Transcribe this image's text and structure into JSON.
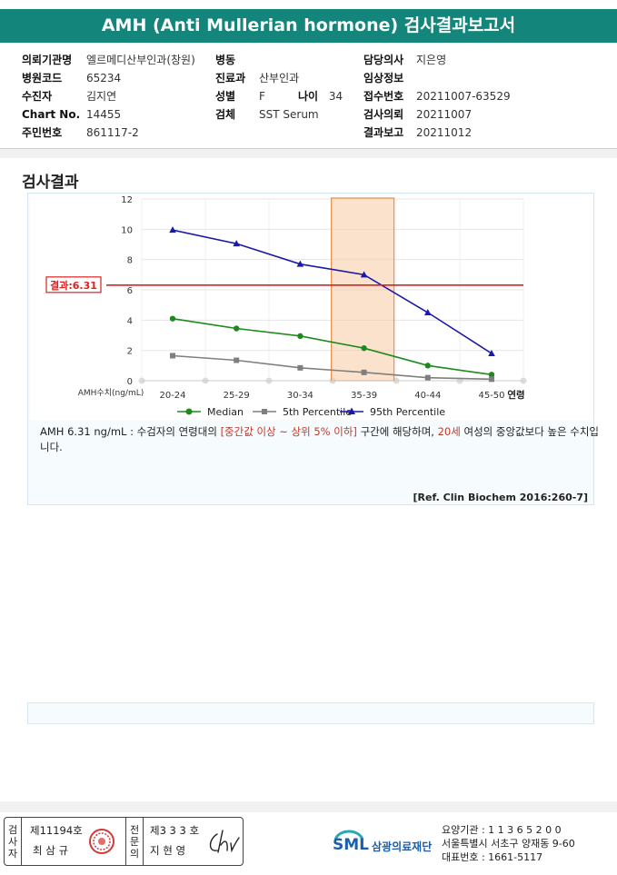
{
  "title": "AMH (Anti Mullerian hormone) 검사결과보고서",
  "info": {
    "left": [
      {
        "label": "의뢰기관명",
        "value": "엘르메디산부인과(창원)"
      },
      {
        "label": "병원코드",
        "value": "65234"
      },
      {
        "label": "수진자",
        "value": "김지연"
      },
      {
        "label": "Chart No.",
        "value": "14455"
      },
      {
        "label": "주민번호",
        "value": "861117-2"
      }
    ],
    "middle": [
      {
        "label": "병동",
        "value": ""
      },
      {
        "label": "진료과",
        "value": "산부인과"
      },
      {
        "label": "성별",
        "value": "F"
      },
      {
        "label": "검체",
        "value": "SST Serum"
      }
    ],
    "age_label": "나이",
    "age_value": "34",
    "right": [
      {
        "label": "담당의사",
        "value": "지은영"
      },
      {
        "label": "임상정보",
        "value": ""
      },
      {
        "label": "접수번호",
        "value": "20211007-63529"
      },
      {
        "label": "검사의뢰",
        "value": "20211007"
      },
      {
        "label": "결과보고",
        "value": "20211012"
      }
    ]
  },
  "section_title": "검사결과",
  "chart_data": {
    "type": "line",
    "categories": [
      "20-24",
      "25-29",
      "30-34",
      "35-39",
      "40-44",
      "45-50"
    ],
    "xlabel": "연령",
    "ylabel": "AMH수치(ng/mL)",
    "ylim": [
      0,
      12
    ],
    "yticks": [
      "0",
      "2",
      "4",
      "6",
      "8",
      "10",
      "12"
    ],
    "grid": true,
    "legend_position": "bottom",
    "series": [
      {
        "name": "Median",
        "color": "#1e8a1e",
        "marker": "circle",
        "values": [
          4.1,
          3.45,
          2.95,
          2.15,
          1.0,
          0.4
        ]
      },
      {
        "name": "5th Percentile",
        "color": "#7f7f7f",
        "marker": "square",
        "values": [
          1.65,
          1.35,
          0.85,
          0.55,
          0.2,
          0.1
        ]
      },
      {
        "name": "95th Percentile",
        "color": "#1a1aa6",
        "marker": "triangle",
        "values": [
          9.95,
          9.05,
          7.7,
          7.0,
          4.5,
          1.8
        ]
      }
    ],
    "result_line": {
      "value": 6.31,
      "label": "결과:6.31",
      "color": "#dd1f1f"
    },
    "highlight_category": "35-39"
  },
  "note": {
    "prefix": "AMH  6.31 ng/mL : 수검자의 연령대의 ",
    "range": "[중간값 이상 ~ 상위 5% 이하]",
    "middle": " 구간에 해당하며, ",
    "age": "20세",
    "suffix": " 여성의 중앙값보다 높은 수치입니다."
  },
  "reference": "[Ref. Clin Biochem 2016:260-7]",
  "signature": {
    "col1_label": [
      "검",
      "사",
      "자"
    ],
    "col1_no": "제11194호",
    "col1_name": "최 삼 규",
    "col2_label": [
      "전",
      "문",
      "의"
    ],
    "col2_no": "제3 3 3 호",
    "col2_name": "지 현 영"
  },
  "org": {
    "logo": "SML",
    "name": "삼광의료재단",
    "code": "요양기관 : 1 1 3 6 5 2 0 0",
    "address": "서울특별시 서초구 양재동 9-60",
    "phone": "대표번호 : 1661-5117"
  }
}
